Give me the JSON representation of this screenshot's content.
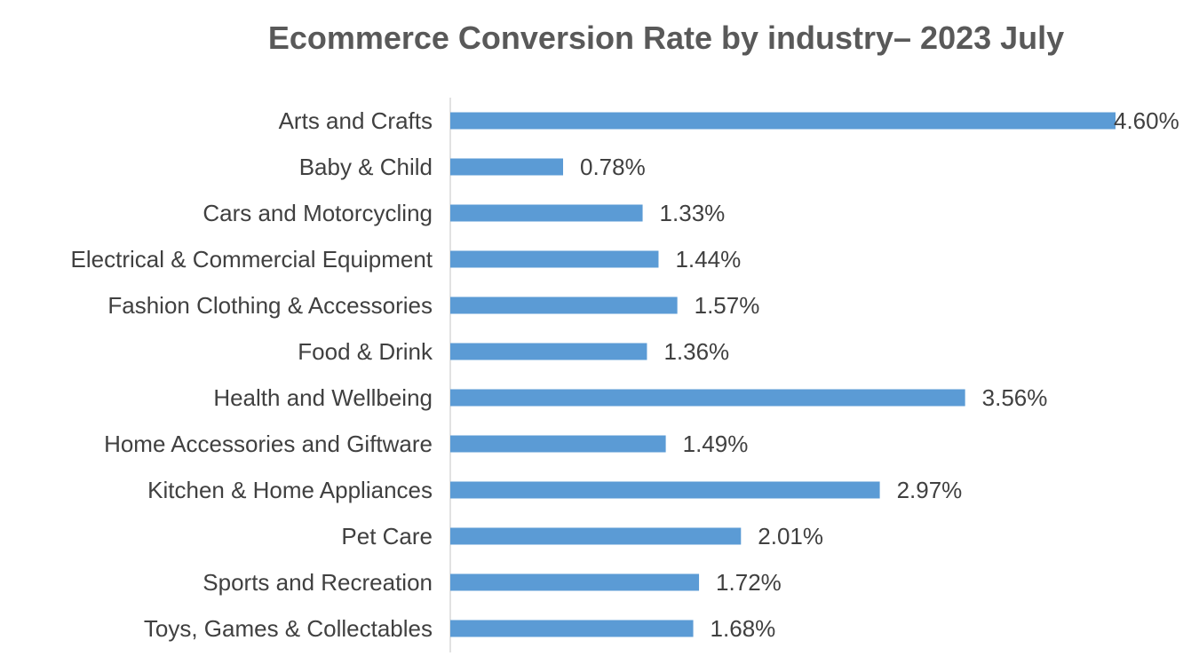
{
  "colors": {
    "bar": "#5b9bd5",
    "axis": "#d9d9d9",
    "text": "#404040",
    "title": "#595959"
  },
  "chart_data": {
    "type": "bar",
    "orientation": "horizontal",
    "title": "Ecommerce Conversion Rate by industry– 2023 July",
    "xlabel": "",
    "ylabel": "",
    "grid": false,
    "legend": "none",
    "xlim": [
      0,
      4.6
    ],
    "categories": [
      "Arts and Crafts",
      "Baby & Child",
      "Cars and Motorcycling",
      "Electrical & Commercial Equipment",
      "Fashion Clothing & Accessories",
      "Food & Drink",
      "Health and Wellbeing",
      "Home Accessories and Giftware",
      "Kitchen & Home Appliances",
      "Pet Care",
      "Sports and Recreation",
      "Toys, Games & Collectables"
    ],
    "values": [
      4.6,
      0.78,
      1.33,
      1.44,
      1.57,
      1.36,
      3.56,
      1.49,
      2.97,
      2.01,
      1.72,
      1.68
    ],
    "data_labels": [
      "4.60%",
      "0.78%",
      "1.33%",
      "1.44%",
      "1.57%",
      "1.36%",
      "3.56%",
      "1.49%",
      "2.97%",
      "2.01%",
      "1.72%",
      "1.68%"
    ]
  }
}
